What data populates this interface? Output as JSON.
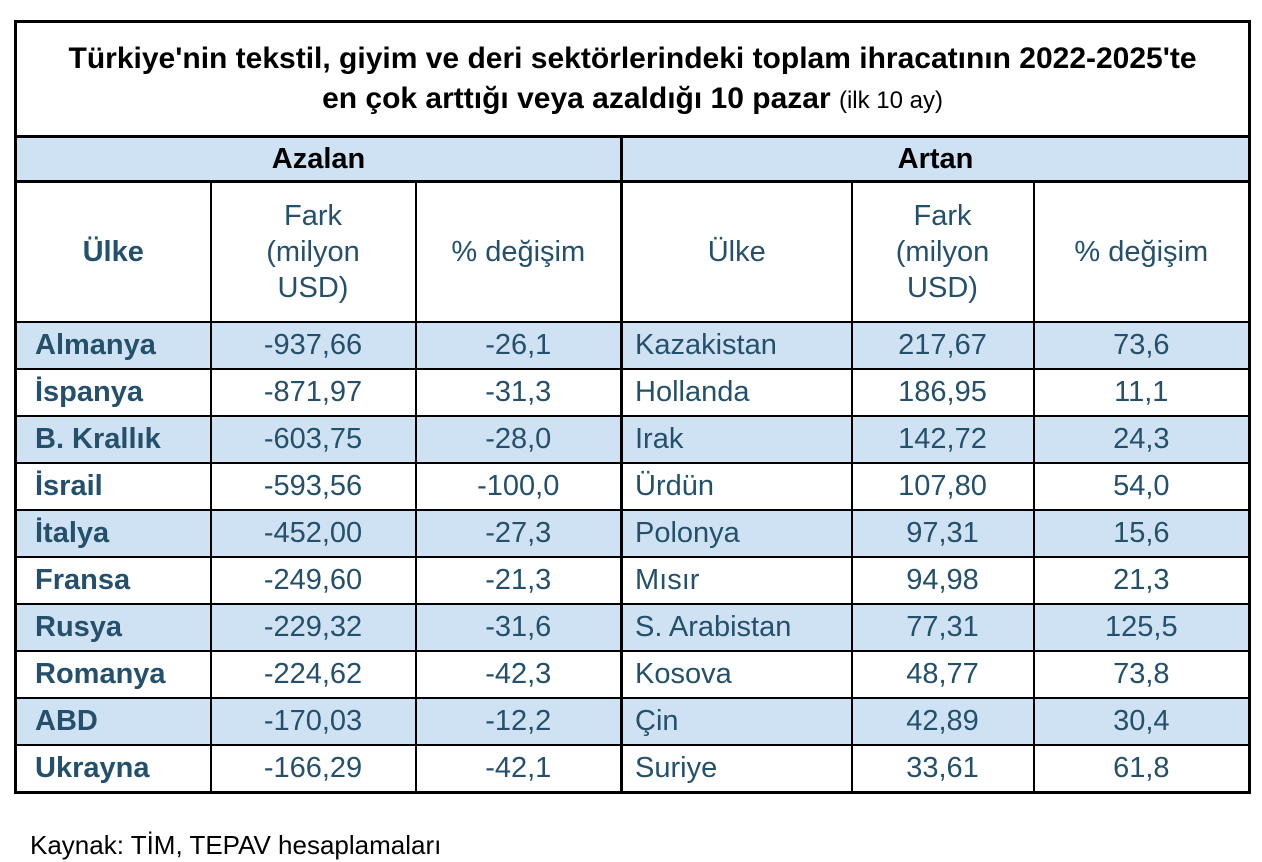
{
  "title": {
    "main": "Türkiye'nin tekstil, giyim ve deri sektörlerindeki toplam ihracatının 2022-2025'te en çok arttığı veya azaldığı 10 pazar",
    "suffix": "(ilk 10 ay)"
  },
  "source": "Kaynak: TİM, TEPAV hesaplamaları",
  "colors": {
    "band_blue": "#cfe2f3",
    "text_navy": "#24506b",
    "border_black": "#000000"
  },
  "chart_data": {
    "type": "table",
    "title": "Türkiye'nin tekstil, giyim ve deri sektörlerindeki toplam ihracatının 2022-2025'te en çok arttığı veya azaldığı 10 pazar (ilk 10 ay)",
    "groups": [
      {
        "label": "Azalan",
        "columns": [
          "Ülke",
          "Fark (milyon USD)",
          "% değişim"
        ],
        "rows": [
          [
            "Almanya",
            "-937,66",
            "-26,1"
          ],
          [
            "İspanya",
            "-871,97",
            "-31,3"
          ],
          [
            "B. Krallık",
            "-603,75",
            "-28,0"
          ],
          [
            "İsrail",
            "-593,56",
            "-100,0"
          ],
          [
            "İtalya",
            "-452,00",
            "-27,3"
          ],
          [
            "Fransa",
            "-249,60",
            "-21,3"
          ],
          [
            "Rusya",
            "-229,32",
            "-31,6"
          ],
          [
            "Romanya",
            "-224,62",
            "-42,3"
          ],
          [
            "ABD",
            "-170,03",
            "-12,2"
          ],
          [
            "Ukrayna",
            "-166,29",
            "-42,1"
          ]
        ]
      },
      {
        "label": "Artan",
        "columns": [
          "Ülke",
          "Fark (milyon USD)",
          "% değişim"
        ],
        "rows": [
          [
            "Kazakistan",
            "217,67",
            "73,6"
          ],
          [
            "Hollanda",
            "186,95",
            "11,1"
          ],
          [
            "Irak",
            "142,72",
            "24,3"
          ],
          [
            "Ürdün",
            "107,80",
            "54,0"
          ],
          [
            "Polonya",
            "97,31",
            "15,6"
          ],
          [
            "Mısır",
            "94,98",
            "21,3"
          ],
          [
            "S. Arabistan",
            "77,31",
            "125,5"
          ],
          [
            "Kosova",
            "48,77",
            "73,8"
          ],
          [
            "Çin",
            "42,89",
            "30,4"
          ],
          [
            "Suriye",
            "33,61",
            "61,8"
          ]
        ]
      }
    ],
    "source": "Kaynak: TİM, TEPAV hesaplamaları"
  }
}
